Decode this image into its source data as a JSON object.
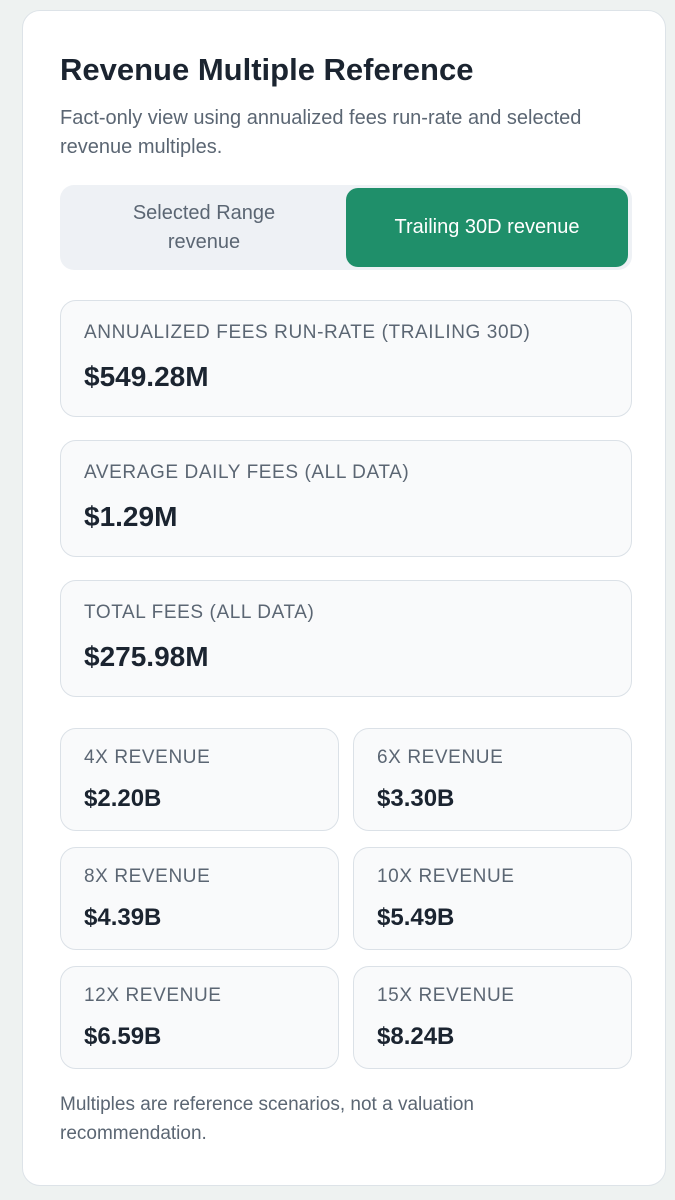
{
  "header": {
    "title": "Revenue Multiple Reference",
    "subtitle": "Fact-only view using annualized fees run-rate and selected revenue multiples."
  },
  "toggle": {
    "options": [
      "Selected Range revenue",
      "Trailing 30D revenue"
    ],
    "active": 1
  },
  "stats": [
    {
      "label": "ANNUALIZED FEES RUN-RATE (TRAILING 30D)",
      "value": "$549.28M"
    },
    {
      "label": "AVERAGE DAILY FEES (ALL DATA)",
      "value": "$1.29M"
    },
    {
      "label": "TOTAL FEES (ALL DATA)",
      "value": "$275.98M"
    }
  ],
  "multiples": [
    {
      "label": "4X REVENUE",
      "value": "$2.20B"
    },
    {
      "label": "6X REVENUE",
      "value": "$3.30B"
    },
    {
      "label": "8X REVENUE",
      "value": "$4.39B"
    },
    {
      "label": "10X REVENUE",
      "value": "$5.49B"
    },
    {
      "label": "12X REVENUE",
      "value": "$6.59B"
    },
    {
      "label": "15X REVENUE",
      "value": "$8.24B"
    }
  ],
  "footnote": "Multiples are reference scenarios, not a valuation recommendation."
}
